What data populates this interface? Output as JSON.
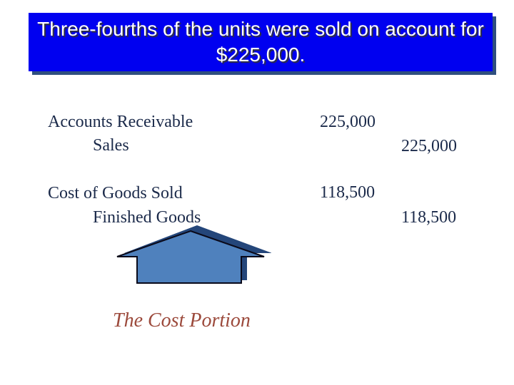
{
  "title": "Three-fourths of the units were sold on account for $225,000.",
  "entries": [
    {
      "debit_account": "Accounts Receivable",
      "credit_account": "Sales",
      "debit": "225,000",
      "credit": "225,000"
    },
    {
      "debit_account": "Cost of Goods Sold",
      "credit_account": "Finished Goods",
      "debit": "118,500",
      "credit": "118,500"
    }
  ],
  "caption": "The Cost Portion",
  "colors": {
    "title_bg": "#0000f0",
    "house": "#4f81bd",
    "caption": "#9c4a3c"
  },
  "icon": "house-icon"
}
